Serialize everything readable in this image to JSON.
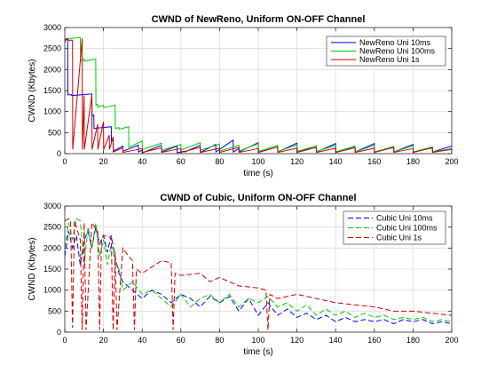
{
  "chart_data": [
    {
      "type": "line",
      "title": "CWND of NewReno, Uniform ON-OFF Channel",
      "xlabel": "time (s)",
      "ylabel": "CWND (Kbytes)",
      "xlim": [
        0,
        200
      ],
      "ylim": [
        0,
        3000
      ],
      "xticks": [
        0,
        20,
        40,
        60,
        80,
        100,
        120,
        140,
        160,
        180,
        200
      ],
      "yticks": [
        0,
        500,
        1000,
        1500,
        2000,
        2500,
        3000
      ],
      "grid": true,
      "legend_position": "top-right",
      "series": [
        {
          "name": "NewReno Uni 10ms",
          "color": "#0000ff",
          "dash": "solid",
          "x": [
            0,
            0.3,
            1.5,
            1.6,
            3.5,
            3.6,
            14,
            14.1,
            15,
            15.1,
            24,
            24.1,
            25,
            25.1,
            30,
            30.1,
            38,
            38.1,
            40,
            40.1,
            50,
            50.1,
            58,
            58.1,
            62,
            62.1,
            70,
            70.1,
            78,
            78.1,
            87,
            87.1,
            90,
            90.1,
            100,
            100.1,
            110,
            110.1,
            120,
            120.1,
            130,
            130.1,
            140,
            140.1,
            150,
            150.1,
            160,
            160.1,
            170,
            170.1,
            180,
            180.1,
            190,
            190.1,
            200
          ],
          "y": [
            2650,
            2700,
            2720,
            1400,
            1400,
            1380,
            1420,
            900,
            920,
            600,
            640,
            300,
            320,
            60,
            180,
            60,
            200,
            40,
            80,
            20,
            200,
            40,
            180,
            20,
            60,
            40,
            200,
            30,
            220,
            40,
            320,
            40,
            120,
            40,
            260,
            30,
            160,
            40,
            250,
            50,
            150,
            40,
            240,
            40,
            170,
            40,
            240,
            40,
            150,
            40,
            220,
            40,
            140,
            40,
            180
          ]
        },
        {
          "name": "NewReno Uni 100ms",
          "color": "#00cc00",
          "dash": "solid",
          "x": [
            0,
            0.5,
            2,
            3,
            8,
            8.1,
            10,
            10.1,
            16,
            16.1,
            17,
            17.1,
            20,
            20.1,
            26,
            26.1,
            28,
            28.1,
            33,
            33.1,
            40,
            40.1,
            50,
            50.1,
            60,
            60.1,
            70,
            70.1,
            80,
            80.1,
            90,
            90.1,
            100,
            100.1,
            110,
            110.1,
            120,
            120.1,
            130,
            130.1,
            140,
            140.1,
            150,
            150.1,
            160,
            160.1,
            170,
            170.1,
            180,
            180.1,
            190,
            190.1,
            200
          ],
          "y": [
            2700,
            2720,
            2740,
            2740,
            2760,
            2200,
            2250,
            2200,
            2250,
            1150,
            1180,
            1100,
            1150,
            1100,
            1150,
            600,
            620,
            580,
            640,
            150,
            300,
            100,
            250,
            80,
            220,
            90,
            260,
            80,
            230,
            60,
            200,
            60,
            240,
            50,
            200,
            50,
            210,
            50,
            190,
            50,
            200,
            40,
            180,
            40,
            200,
            40,
            170,
            40,
            190,
            40,
            160,
            40,
            120
          ]
        },
        {
          "name": "NewReno Uni 1s",
          "color": "#cc0000",
          "dash": "solid",
          "x": [
            0,
            1,
            2,
            4,
            4.1,
            9,
            9.1,
            10,
            10.1,
            14,
            14.1,
            17,
            17.1,
            20,
            20.1,
            23,
            23.1,
            25,
            25.1,
            30,
            30.1,
            40,
            40.1,
            50,
            50.1,
            60,
            60.1,
            70,
            70.1,
            80,
            80.1,
            90,
            90.1,
            100,
            100.1,
            110,
            110.1,
            120,
            120.1,
            130,
            130.1,
            140,
            140.1,
            150,
            150.1,
            160,
            160.1,
            170,
            170.1,
            180,
            180.1,
            190,
            190.1,
            200
          ],
          "y": [
            2700,
            2740,
            2700,
            2700,
            100,
            2740,
            100,
            1380,
            100,
            1400,
            100,
            700,
            100,
            760,
            100,
            440,
            100,
            400,
            40,
            140,
            30,
            120,
            30,
            140,
            30,
            120,
            30,
            150,
            30,
            130,
            30,
            150,
            30,
            120,
            30,
            160,
            30,
            130,
            30,
            150,
            30,
            130,
            30,
            140,
            30,
            130,
            30,
            150,
            30,
            120,
            30,
            140,
            30,
            100
          ]
        }
      ]
    },
    {
      "type": "line",
      "title": "CWND of Cubic, Uniform ON-OFF Channel",
      "xlabel": "time (s)",
      "ylabel": "CWND (Kbytes)",
      "xlim": [
        0,
        200
      ],
      "ylim": [
        0,
        3000
      ],
      "xticks": [
        0,
        20,
        40,
        60,
        80,
        100,
        120,
        140,
        160,
        180,
        200
      ],
      "yticks": [
        0,
        500,
        1000,
        1500,
        2000,
        2500,
        3000
      ],
      "grid": true,
      "legend_position": "top-right",
      "series": [
        {
          "name": "Cubic Uni 10ms",
          "color": "#0000ff",
          "dash": "dashed",
          "x": [
            0,
            2,
            4,
            6,
            8,
            10,
            12,
            14,
            16,
            18,
            20,
            22,
            24,
            26,
            28,
            30,
            35,
            40,
            45,
            50,
            55,
            60,
            65,
            70,
            75,
            80,
            85,
            90,
            95,
            100,
            105,
            110,
            115,
            120,
            125,
            130,
            135,
            140,
            145,
            150,
            155,
            160,
            165,
            170,
            175,
            180,
            185,
            190,
            195,
            200
          ],
          "y": [
            1800,
            2400,
            2000,
            2300,
            1600,
            2200,
            2400,
            2000,
            2500,
            2100,
            2300,
            1900,
            2300,
            1800,
            1400,
            1200,
            1000,
            800,
            1000,
            900,
            700,
            900,
            800,
            600,
            850,
            700,
            850,
            500,
            800,
            400,
            700,
            400,
            550,
            350,
            450,
            300,
            400,
            250,
            350,
            250,
            300,
            250,
            300,
            200,
            300,
            250,
            300,
            200,
            250,
            200
          ]
        },
        {
          "name": "Cubic Uni 100ms",
          "color": "#00cc00",
          "dash": "dashed",
          "x": [
            0,
            2,
            4,
            6,
            8,
            10,
            12,
            14,
            16,
            18,
            20,
            22,
            24,
            26,
            28,
            30,
            35,
            40,
            45,
            50,
            55,
            60,
            65,
            70,
            75,
            80,
            85,
            90,
            95,
            100,
            105,
            110,
            115,
            120,
            125,
            130,
            135,
            140,
            145,
            150,
            155,
            160,
            165,
            170,
            175,
            180,
            185,
            190,
            195,
            200
          ],
          "y": [
            2000,
            2600,
            2200,
            2700,
            2650,
            1600,
            2500,
            2000,
            2600,
            1800,
            2200,
            1600,
            2100,
            1700,
            1500,
            1000,
            1200,
            900,
            1000,
            800,
            600,
            900,
            600,
            800,
            900,
            700,
            900,
            600,
            800,
            700,
            850,
            600,
            700,
            500,
            650,
            400,
            550,
            400,
            500,
            350,
            450,
            350,
            400,
            300,
            350,
            300,
            350,
            250,
            300,
            250
          ]
        },
        {
          "name": "Cubic Uni 1s",
          "color": "#cc0000",
          "dash": "dashed",
          "x": [
            0,
            2,
            3,
            4,
            5,
            8,
            9,
            10,
            11,
            14,
            17,
            18,
            19,
            20,
            24,
            25,
            26,
            27,
            30,
            33,
            35,
            36,
            37,
            40,
            50,
            55,
            56,
            57,
            60,
            70,
            75,
            80,
            90,
            100,
            104,
            105,
            106,
            110,
            120,
            130,
            140,
            150,
            160,
            170,
            180,
            190,
            200
          ],
          "y": [
            2650,
            2700,
            2650,
            100,
            2650,
            2200,
            50,
            2600,
            50,
            2600,
            2400,
            50,
            2200,
            2300,
            2250,
            50,
            1900,
            50,
            2000,
            1800,
            1700,
            50,
            1500,
            1400,
            1700,
            1650,
            50,
            1400,
            1350,
            1400,
            1200,
            1300,
            1100,
            1050,
            1000,
            50,
            900,
            800,
            900,
            800,
            700,
            650,
            600,
            500,
            500,
            450,
            400
          ]
        }
      ]
    }
  ]
}
